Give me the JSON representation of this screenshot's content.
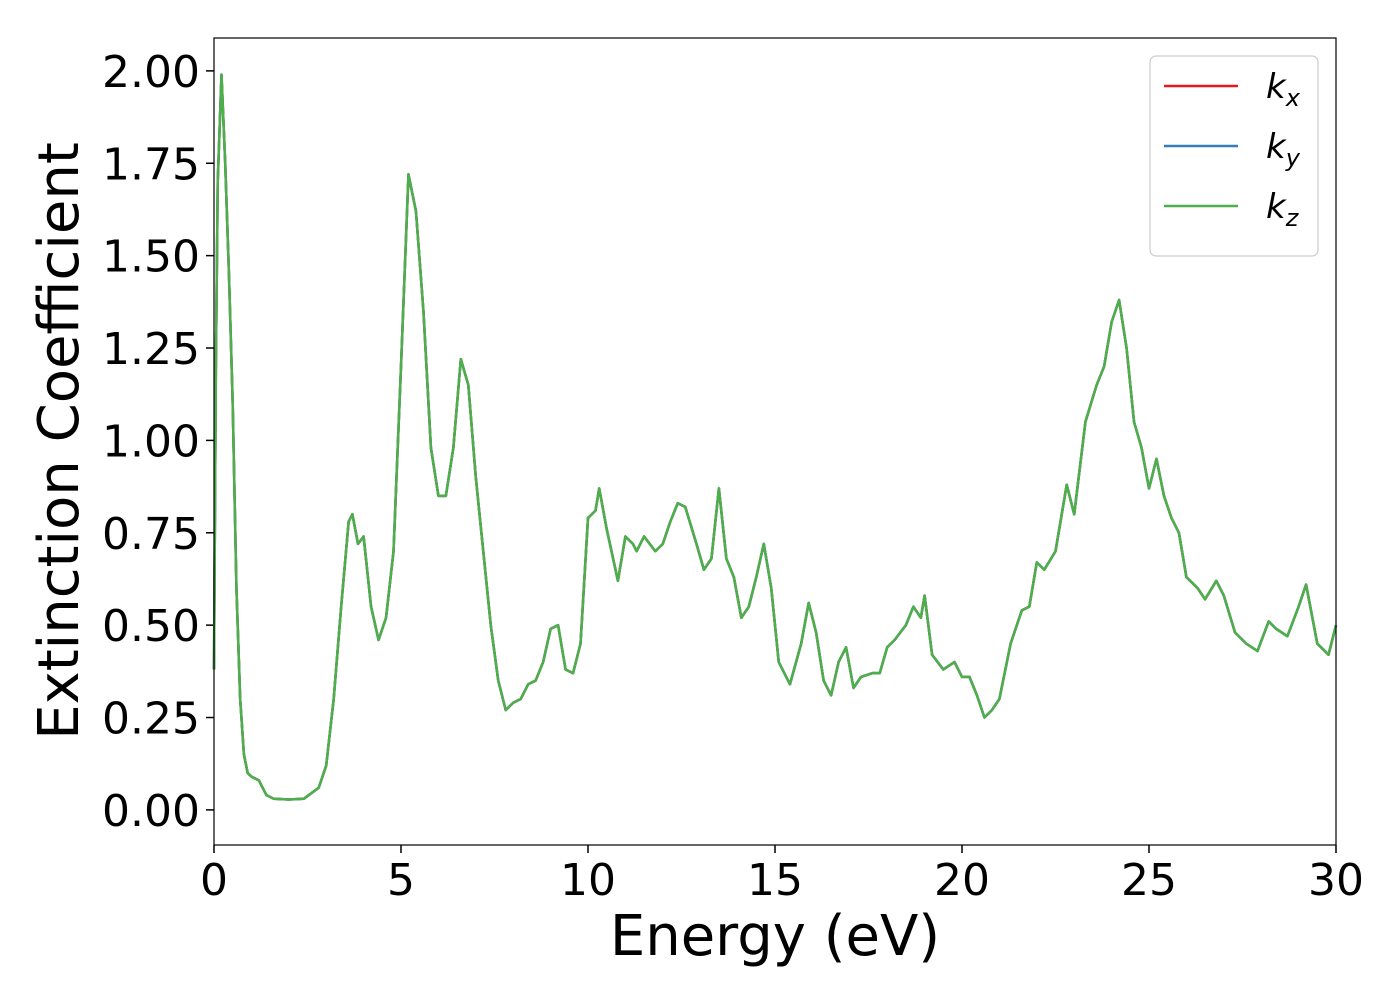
{
  "chart_data": {
    "type": "line",
    "xlabel": "Energy (eV)",
    "ylabel": "Extinction Coefficient",
    "xlim": [
      0,
      30
    ],
    "ylim": [
      -0.095,
      2.089
    ],
    "xticks": [
      0,
      5,
      10,
      15,
      20,
      25,
      30
    ],
    "yticks": [
      {
        "value": 0,
        "label": "0.00"
      },
      {
        "value": 0.25,
        "label": "0.25"
      },
      {
        "value": 0.5,
        "label": "0.50"
      },
      {
        "value": 0.75,
        "label": "0.75"
      },
      {
        "value": 1,
        "label": "1.00"
      },
      {
        "value": 1.25,
        "label": "1.25"
      },
      {
        "value": 1.5,
        "label": "1.50"
      },
      {
        "value": 1.75,
        "label": "1.75"
      },
      {
        "value": 2,
        "label": "2.00"
      }
    ],
    "legend": "upper right",
    "grid": false,
    "x": [
      0,
      0.05,
      0.1,
      0.2,
      0.3,
      0.4,
      0.5,
      0.6,
      0.7,
      0.8,
      0.9,
      1.0,
      1.2,
      1.4,
      1.6,
      2.0,
      2.4,
      2.8,
      3.0,
      3.2,
      3.4,
      3.6,
      3.7,
      3.85,
      4.0,
      4.2,
      4.4,
      4.6,
      4.8,
      5.0,
      5.2,
      5.4,
      5.6,
      5.8,
      6.0,
      6.2,
      6.4,
      6.6,
      6.8,
      7.0,
      7.2,
      7.4,
      7.6,
      7.8,
      8.0,
      8.2,
      8.4,
      8.6,
      8.8,
      9.0,
      9.2,
      9.4,
      9.6,
      9.8,
      10.0,
      10.2,
      10.3,
      10.5,
      10.8,
      11.0,
      11.2,
      11.3,
      11.5,
      11.8,
      12.0,
      12.2,
      12.4,
      12.6,
      12.9,
      13.1,
      13.3,
      13.5,
      13.7,
      13.9,
      14.1,
      14.3,
      14.5,
      14.7,
      14.9,
      15.1,
      15.4,
      15.7,
      15.9,
      16.1,
      16.3,
      16.5,
      16.7,
      16.9,
      17.1,
      17.3,
      17.6,
      17.8,
      18.0,
      18.2,
      18.5,
      18.7,
      18.9,
      19.0,
      19.2,
      19.5,
      19.8,
      20.0,
      20.2,
      20.4,
      20.6,
      20.8,
      21.0,
      21.3,
      21.6,
      21.8,
      22.0,
      22.2,
      22.5,
      22.8,
      23.0,
      23.3,
      23.6,
      23.8,
      24.0,
      24.2,
      24.4,
      24.6,
      24.8,
      25.0,
      25.2,
      25.4,
      25.6,
      25.8,
      26.0,
      26.3,
      26.5,
      26.8,
      27.0,
      27.3,
      27.6,
      27.9,
      28.2,
      28.4,
      28.7,
      29.0,
      29.2,
      29.5,
      29.8,
      30.0
    ],
    "series": [
      {
        "name": "kx",
        "color": "#e41a1c",
        "values": [
          0.38,
          1.2,
          1.7,
          1.99,
          1.75,
          1.45,
          1.1,
          0.6,
          0.3,
          0.15,
          0.1,
          0.09,
          0.08,
          0.04,
          0.03,
          0.028,
          0.03,
          0.06,
          0.12,
          0.3,
          0.55,
          0.78,
          0.8,
          0.72,
          0.74,
          0.55,
          0.46,
          0.52,
          0.7,
          1.2,
          1.72,
          1.62,
          1.35,
          0.98,
          0.85,
          0.85,
          0.98,
          1.22,
          1.15,
          0.9,
          0.7,
          0.5,
          0.35,
          0.27,
          0.29,
          0.3,
          0.34,
          0.35,
          0.4,
          0.49,
          0.5,
          0.38,
          0.37,
          0.45,
          0.79,
          0.81,
          0.87,
          0.76,
          0.62,
          0.74,
          0.72,
          0.7,
          0.74,
          0.7,
          0.72,
          0.78,
          0.83,
          0.82,
          0.72,
          0.65,
          0.68,
          0.87,
          0.68,
          0.63,
          0.52,
          0.55,
          0.63,
          0.72,
          0.6,
          0.4,
          0.34,
          0.45,
          0.56,
          0.48,
          0.35,
          0.31,
          0.4,
          0.44,
          0.33,
          0.36,
          0.37,
          0.37,
          0.44,
          0.46,
          0.5,
          0.55,
          0.52,
          0.58,
          0.42,
          0.38,
          0.4,
          0.36,
          0.36,
          0.31,
          0.25,
          0.27,
          0.3,
          0.45,
          0.54,
          0.55,
          0.67,
          0.65,
          0.7,
          0.88,
          0.8,
          1.05,
          1.15,
          1.2,
          1.32,
          1.38,
          1.25,
          1.05,
          0.98,
          0.87,
          0.95,
          0.85,
          0.79,
          0.75,
          0.63,
          0.6,
          0.57,
          0.62,
          0.58,
          0.48,
          0.45,
          0.43,
          0.51,
          0.49,
          0.47,
          0.55,
          0.61,
          0.45,
          0.42,
          0.5
        ]
      },
      {
        "name": "ky",
        "color": "#377eb8",
        "values": [
          0.38,
          1.2,
          1.7,
          1.99,
          1.75,
          1.45,
          1.1,
          0.6,
          0.3,
          0.15,
          0.1,
          0.09,
          0.08,
          0.04,
          0.03,
          0.028,
          0.03,
          0.06,
          0.12,
          0.3,
          0.55,
          0.78,
          0.8,
          0.72,
          0.74,
          0.55,
          0.46,
          0.52,
          0.7,
          1.2,
          1.72,
          1.62,
          1.35,
          0.98,
          0.85,
          0.85,
          0.98,
          1.22,
          1.15,
          0.9,
          0.7,
          0.5,
          0.35,
          0.27,
          0.29,
          0.3,
          0.34,
          0.35,
          0.4,
          0.49,
          0.5,
          0.38,
          0.37,
          0.45,
          0.79,
          0.81,
          0.87,
          0.76,
          0.62,
          0.74,
          0.72,
          0.7,
          0.74,
          0.7,
          0.72,
          0.78,
          0.83,
          0.82,
          0.72,
          0.65,
          0.68,
          0.87,
          0.68,
          0.63,
          0.52,
          0.55,
          0.63,
          0.72,
          0.6,
          0.4,
          0.34,
          0.45,
          0.56,
          0.48,
          0.35,
          0.31,
          0.4,
          0.44,
          0.33,
          0.36,
          0.37,
          0.37,
          0.44,
          0.46,
          0.5,
          0.55,
          0.52,
          0.58,
          0.42,
          0.38,
          0.4,
          0.36,
          0.36,
          0.31,
          0.25,
          0.27,
          0.3,
          0.45,
          0.54,
          0.55,
          0.67,
          0.65,
          0.7,
          0.88,
          0.8,
          1.05,
          1.15,
          1.2,
          1.32,
          1.38,
          1.25,
          1.05,
          0.98,
          0.87,
          0.95,
          0.85,
          0.79,
          0.75,
          0.63,
          0.6,
          0.57,
          0.62,
          0.58,
          0.48,
          0.45,
          0.43,
          0.51,
          0.49,
          0.47,
          0.55,
          0.61,
          0.45,
          0.42,
          0.5
        ]
      },
      {
        "name": "kz",
        "color": "#4daf4a",
        "values": [
          0.38,
          1.2,
          1.7,
          1.99,
          1.75,
          1.45,
          1.1,
          0.6,
          0.3,
          0.15,
          0.1,
          0.09,
          0.08,
          0.04,
          0.03,
          0.028,
          0.03,
          0.06,
          0.12,
          0.3,
          0.55,
          0.78,
          0.8,
          0.72,
          0.74,
          0.55,
          0.46,
          0.52,
          0.7,
          1.2,
          1.72,
          1.62,
          1.35,
          0.98,
          0.85,
          0.85,
          0.98,
          1.22,
          1.15,
          0.9,
          0.7,
          0.5,
          0.35,
          0.27,
          0.29,
          0.3,
          0.34,
          0.35,
          0.4,
          0.49,
          0.5,
          0.38,
          0.37,
          0.45,
          0.79,
          0.81,
          0.87,
          0.76,
          0.62,
          0.74,
          0.72,
          0.7,
          0.74,
          0.7,
          0.72,
          0.78,
          0.83,
          0.82,
          0.72,
          0.65,
          0.68,
          0.87,
          0.68,
          0.63,
          0.52,
          0.55,
          0.63,
          0.72,
          0.6,
          0.4,
          0.34,
          0.45,
          0.56,
          0.48,
          0.35,
          0.31,
          0.4,
          0.44,
          0.33,
          0.36,
          0.37,
          0.37,
          0.44,
          0.46,
          0.5,
          0.55,
          0.52,
          0.58,
          0.42,
          0.38,
          0.4,
          0.36,
          0.36,
          0.31,
          0.25,
          0.27,
          0.3,
          0.45,
          0.54,
          0.55,
          0.67,
          0.65,
          0.7,
          0.88,
          0.8,
          1.05,
          1.15,
          1.2,
          1.32,
          1.38,
          1.25,
          1.05,
          0.98,
          0.87,
          0.95,
          0.85,
          0.79,
          0.75,
          0.63,
          0.6,
          0.57,
          0.62,
          0.58,
          0.48,
          0.45,
          0.43,
          0.51,
          0.49,
          0.47,
          0.55,
          0.61,
          0.45,
          0.42,
          0.5
        ]
      }
    ]
  }
}
